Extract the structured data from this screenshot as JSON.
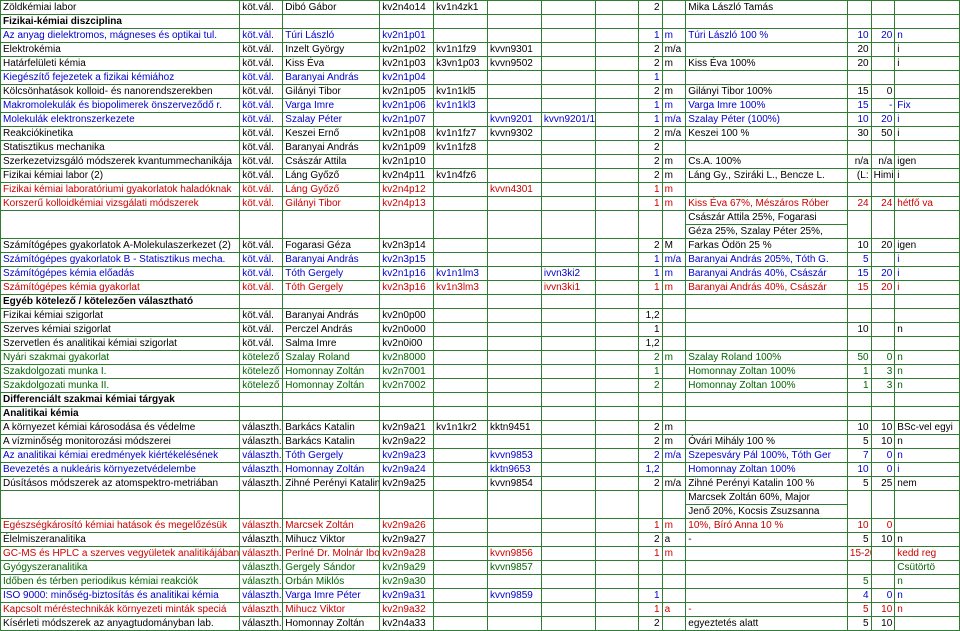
{
  "colors": {
    "border": "#2e7d32",
    "blue": "#0000cc",
    "green": "#006400",
    "red": "#cc0000",
    "black": "#000000"
  },
  "font": {
    "family": "Arial",
    "size": 10
  },
  "rows": [
    {
      "cls": "black",
      "c": [
        "Zöldkémiai labor",
        "köt.vál.",
        "Dibó Gábor",
        "kv2n4o14",
        "kv1n4zk1",
        "",
        "",
        "",
        "2",
        "",
        "Mika László Tamás",
        "",
        "",
        ""
      ]
    },
    {
      "cls": "header",
      "c": [
        "Fizikai-kémiai diszciplina",
        "",
        "",
        "",
        "",
        "",
        "",
        "",
        "",
        "",
        "",
        "",
        "",
        ""
      ]
    },
    {
      "cls": "blue",
      "c": [
        "Az anyag dielektromos, mágneses és optikai tul.",
        "köt.vál.",
        "Túri László",
        "kv2n1p01",
        "",
        "",
        "",
        "",
        "1",
        "m",
        "Túri László 100 %",
        "10",
        "20",
        "n"
      ]
    },
    {
      "cls": "black",
      "c": [
        "Elektrokémia",
        "köt.vál.",
        "Inzelt György",
        "kv2n1p02",
        "kv1n1fz9",
        "kvvn9301",
        "",
        "",
        "2",
        "m/a",
        "",
        "20",
        "",
        "i"
      ]
    },
    {
      "cls": "black",
      "c": [
        "Határfelületi kémia",
        "köt.vál.",
        "Kiss Éva",
        "kv2n1p03",
        "k3vn1p03",
        "kvvn9502",
        "",
        "",
        "2",
        "m",
        "Kiss Éva 100%",
        "20",
        "",
        "i"
      ]
    },
    {
      "cls": "blue",
      "c": [
        "Kiegészítő fejezetek a fizikai kémiához",
        "köt.vál.",
        "Baranyai András",
        "kv2n1p04",
        "",
        "",
        "",
        "",
        "1",
        "",
        "",
        "",
        "",
        ""
      ]
    },
    {
      "cls": "black",
      "c": [
        "Kölcsönhatások kolloid- és nanorendszerekben",
        "köt.vál.",
        "Gilányi Tibor",
        "kv2n1p05",
        "kv1n1kl5",
        "",
        "",
        "",
        "2",
        "m",
        "Gilányi Tibor 100%",
        "15",
        "0",
        ""
      ]
    },
    {
      "cls": "blue",
      "c": [
        "Makromolekulák és biopolimerek önszerveződő r.",
        "köt.vál.",
        "Varga Imre",
        "kv2n1p06",
        "kv1n1kl3",
        "",
        "",
        "",
        "1",
        "m",
        "Varga Imre 100%",
        "15",
        "-",
        "Fix"
      ]
    },
    {
      "cls": "blue",
      "c": [
        "Molekulák elektronszerkezete",
        "köt.vál.",
        "Szalay Péter",
        "kv2n1p07",
        "",
        "kvvn9201",
        "kvvn9201/1",
        "",
        "1",
        "m/a",
        "Szalay Péter (100%)",
        "10",
        "20",
        "i"
      ]
    },
    {
      "cls": "black",
      "c": [
        "Reakciókinetika",
        "köt.vál.",
        "Keszei Ernő",
        "kv2n1p08",
        "kv1n1fz7",
        "kvvn9302",
        "",
        "",
        "2",
        "m/a",
        "Keszei 100 %",
        "30",
        "50",
        "i"
      ]
    },
    {
      "cls": "black",
      "c": [
        "Statisztikus mechanika",
        "köt.vál.",
        "Baranyai András",
        "kv2n1p09",
        "kv1n1fz8",
        "",
        "",
        "",
        "2",
        "",
        "",
        "",
        "",
        ""
      ]
    },
    {
      "cls": "black",
      "c": [
        "Szerkezetvizsgáló módszerek kvantummechanikája",
        "köt.vál.",
        "Császár Attila",
        "kv2n1p10",
        "",
        "",
        "",
        "",
        "2",
        "m",
        "Cs.A. 100%",
        "n/a",
        "n/a",
        "igen"
      ]
    },
    {
      "cls": "black",
      "c": [
        "Fizikai kémiai labor (2)",
        "köt.vál.",
        "Láng Győző",
        "kv2n4p11",
        "kv1n4fz6",
        "",
        "",
        "",
        "2",
        "m",
        "Láng Gy., Sziráki L., Bencze L.",
        "(L:",
        "Himics",
        "i"
      ]
    },
    {
      "cls": "red",
      "c": [
        "Fizikai kémiai laboratóriumi gyakorlatok haladóknak",
        "köt.vál.",
        "Láng Győző",
        "kv2n4p12",
        "",
        "kvvn4301",
        "",
        "",
        "1",
        "m",
        "",
        "",
        "",
        ""
      ]
    },
    {
      "cls": "red",
      "c": [
        "Korszerű kolloidkémiai vizsgálati módszerek",
        "köt.vál.",
        "Gilányi Tibor",
        "kv2n4p13",
        "",
        "",
        "",
        "",
        "1",
        "m",
        "Kiss Éva 67%, Mészáros Róber",
        "24",
        "24",
        "hétfő va"
      ]
    },
    {
      "cls": "black multi",
      "c": [
        "",
        "",
        "",
        "",
        "",
        "",
        "",
        "",
        "",
        "",
        "Császár Attila 25%, Fogarasi",
        "",
        "",
        ""
      ]
    },
    {
      "cls": "black multi",
      "c": [
        "",
        "",
        "",
        "",
        "",
        "",
        "",
        "",
        "",
        "",
        "Géza 25%, Szalay Péter 25%,",
        "",
        "",
        ""
      ]
    },
    {
      "cls": "black",
      "c": [
        "Számítógépes gyakorlatok A-Molekulaszerkezet (2)",
        "köt.vál.",
        "Fogarasi Géza",
        "kv2n3p14",
        "",
        "",
        "",
        "",
        "2",
        "M",
        "Farkas Ödön 25 %",
        "10",
        "20",
        "igen"
      ]
    },
    {
      "cls": "blue",
      "c": [
        "Számítógépes gyakorlatok B - Statisztikus mecha.",
        "köt.vál.",
        "Baranyai András",
        "kv2n3p15",
        "",
        "",
        "",
        "",
        "1",
        "m/a",
        "Baranyai András 205%, Tóth G.",
        "5",
        "",
        "i"
      ]
    },
    {
      "cls": "blue",
      "c": [
        "Számítógépes kémia előadás",
        "köt.vál.",
        "Tóth Gergely",
        "kv2n1p16",
        "kv1n1lm3",
        "",
        "ivvn3ki2",
        "",
        "1",
        "m",
        "Baranyai András 40%, Császár",
        "15",
        "20",
        "i"
      ]
    },
    {
      "cls": "red",
      "c": [
        "Számítógépes kémia gyakorlat",
        "köt.vál.",
        "Tóth Gergely",
        "kv2n3p16",
        "kv1n3lm3",
        "",
        "ivvn3ki1",
        "",
        "1",
        "m",
        "Baranyai András 40%, Császár",
        "15",
        "20",
        "i"
      ]
    },
    {
      "cls": "header",
      "c": [
        "Egyéb kötelező / kötelezően választható",
        "",
        "",
        "",
        "",
        "",
        "",
        "",
        "",
        "",
        "",
        "",
        "",
        ""
      ]
    },
    {
      "cls": "black",
      "c": [
        "Fizikai kémiai szigorlat",
        "köt.vál.",
        "Baranyai András",
        "kv2n0p00",
        "",
        "",
        "",
        "",
        "1,2",
        "",
        "",
        "",
        "",
        ""
      ]
    },
    {
      "cls": "black",
      "c": [
        "Szerves kémiai szigorlat",
        "köt.vál.",
        "Perczel András",
        "kv2n0o00",
        "",
        "",
        "",
        "",
        "1",
        "",
        "",
        "10",
        "",
        "n"
      ]
    },
    {
      "cls": "black",
      "c": [
        "Szervetlen és analitikai kémiai szigorlat",
        "köt.vál.",
        "Salma Imre",
        "kv2n0i00",
        "",
        "",
        "",
        "",
        "1,2",
        "",
        "",
        "",
        "",
        ""
      ]
    },
    {
      "cls": "green",
      "c": [
        "Nyári szakmai gyakorlat",
        "kötelező",
        "Szalay Roland",
        "kv2n8000",
        "",
        "",
        "",
        "",
        "2",
        "m",
        "Szalay Roland 100%",
        "50",
        "0",
        "n"
      ]
    },
    {
      "cls": "green",
      "c": [
        "Szakdolgozati munka I.",
        "kötelező",
        "Homonnay Zoltán",
        "kv2n7001",
        "",
        "",
        "",
        "",
        "1",
        "",
        "Homonnay Zoltan 100%",
        "1",
        "3",
        "n"
      ]
    },
    {
      "cls": "green",
      "c": [
        "Szakdolgozati munka II.",
        "kötelező",
        "Homonnay Zoltán",
        "kv2n7002",
        "",
        "",
        "",
        "",
        "2",
        "",
        "Homonnay Zoltan 100%",
        "1",
        "3",
        "n"
      ]
    },
    {
      "cls": "header",
      "c": [
        "Differenciált szakmai kémiai tárgyak",
        "",
        "",
        "",
        "",
        "",
        "",
        "",
        "",
        "",
        "",
        "",
        "",
        ""
      ]
    },
    {
      "cls": "header",
      "c": [
        "Analitikai kémia",
        "",
        "",
        "",
        "",
        "",
        "",
        "",
        "",
        "",
        "",
        "",
        "",
        ""
      ]
    },
    {
      "cls": "black",
      "c": [
        "A környezet kémiai károsodása és védelme",
        "választh.",
        "Barkács Katalin",
        "kv2n9a21",
        "kv1n1kr2",
        "kktn9451",
        "",
        "",
        "2",
        "m",
        "",
        "10",
        "10",
        "BSc-vel egyi"
      ]
    },
    {
      "cls": "black",
      "c": [
        "A vízminőség monitorozási módszerei",
        "választh.",
        "Barkács Katalin",
        "kv2n9a22",
        "",
        "",
        "",
        "",
        "2",
        "m",
        "Óvári Mihály 100 %",
        "5",
        "10",
        "n"
      ]
    },
    {
      "cls": "blue",
      "c": [
        "Az analitikai kémiai eredmények kiértékelésének",
        "választh.",
        "Tóth Gergely",
        "kv2n9a23",
        "",
        "kvvn9853",
        "",
        "",
        "2",
        "m/a",
        "Szepesváry Pál 100%, Tóth Ger",
        "7",
        "0",
        "n"
      ]
    },
    {
      "cls": "blue",
      "c": [
        "Bevezetés a nukleáris környezetvédelembe",
        "választh.",
        "Homonnay Zoltán",
        "kv2n9a24",
        "",
        "kktn9653",
        "",
        "",
        "1,2",
        "",
        "Homonnay Zoltan 100%",
        "10",
        "0",
        "i"
      ]
    },
    {
      "cls": "black",
      "c": [
        "Dúsításos módszerek az atomspektro-metriában",
        "választh.",
        "Zihné Perényi Katalin",
        "kv2n9a25",
        "",
        "kvvn9854",
        "",
        "",
        "2",
        "m/a",
        "Zihné Perényi Katalin 100 %",
        "5",
        "25",
        "nem"
      ]
    },
    {
      "cls": "black multi",
      "c": [
        "",
        "",
        "",
        "",
        "",
        "",
        "",
        "",
        "",
        "",
        "Marcsek Zoltán 60%, Major",
        "",
        "",
        ""
      ]
    },
    {
      "cls": "black multi",
      "c": [
        "",
        "",
        "",
        "",
        "",
        "",
        "",
        "",
        "",
        "",
        "Jenő 20%, Kocsis Zsuzsanna",
        "",
        "",
        ""
      ]
    },
    {
      "cls": "red",
      "c": [
        "Egészségkárosító kémiai hatások és megelőzésük",
        "választh.",
        "Marcsek Zoltán",
        "kv2n9a26",
        "",
        "",
        "",
        "",
        "1",
        "m",
        "10%, Bíró Anna 10 %",
        "10",
        "0",
        ""
      ]
    },
    {
      "cls": "black",
      "c": [
        "Élelmiszeranalitika",
        "választh.",
        "Mihucz Viktor",
        "kv2n9a27",
        "",
        "",
        "",
        "",
        "2",
        "a",
        "-",
        "5",
        "10",
        "n"
      ]
    },
    {
      "cls": "red",
      "c": [
        "GC-MS és HPLC a szerves vegyületek analitikájában",
        "választh.",
        "Perlné Dr. Molnár Ibolya",
        "kv2n9a28",
        "",
        "kvvn9856",
        "",
        "",
        "1",
        "m",
        "",
        "15-2025",
        "",
        "kedd reg"
      ]
    },
    {
      "cls": "green",
      "c": [
        "Gyógyszeranalitika",
        "választh.",
        "Gergely Sándor",
        "kv2n9a29",
        "",
        "kvvn9857",
        "",
        "",
        "",
        "",
        "",
        "",
        "",
        "Csütörtö"
      ]
    },
    {
      "cls": "green",
      "c": [
        "Időben és térben periodikus kémiai reakciók",
        "választh.",
        "Orbán Miklós",
        "kv2n9a30",
        "",
        "",
        "",
        "",
        "",
        "",
        "",
        "5",
        "",
        "n"
      ]
    },
    {
      "cls": "blue",
      "c": [
        "ISO 9000: minőség-biztosítás és analitikai kémia",
        "választh.",
        "Varga Imre Péter",
        "kv2n9a31",
        "",
        "kvvn9859",
        "",
        "",
        "1",
        "",
        "",
        "4",
        "0",
        "n"
      ]
    },
    {
      "cls": "red",
      "c": [
        "Kapcsolt méréstechnikák környezeti minták speciá",
        "választh.",
        "Mihucz Viktor",
        "kv2n9a32",
        "",
        "",
        "",
        "",
        "1",
        "a",
        "-",
        "5",
        "10",
        "n"
      ]
    },
    {
      "cls": "black",
      "c": [
        "Kísérleti módszerek az anyagtudományban lab.",
        "választh.",
        "Homonnay Zoltán",
        "kv2n4a33",
        "",
        "",
        "",
        "",
        "2",
        "",
        "egyeztetés alatt",
        "5",
        "10",
        ""
      ]
    }
  ]
}
